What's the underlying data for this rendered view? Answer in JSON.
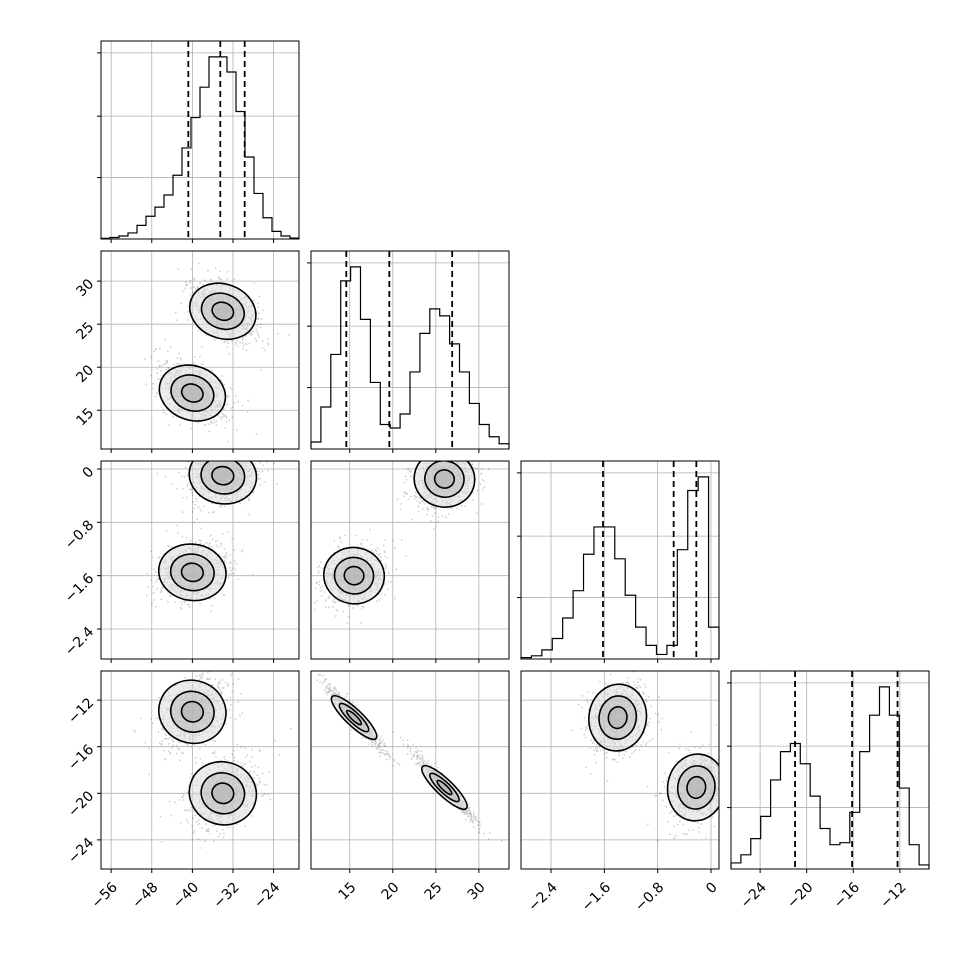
{
  "chart_data": {
    "type": "corner",
    "parameters": 4,
    "grid": true,
    "axes": [
      {
        "xticks": [
          -56,
          -48,
          -40,
          -32,
          -24
        ],
        "range": [
          -58,
          -19
        ],
        "hist": [
          0.2,
          0.5,
          1,
          2,
          4.5,
          7.5,
          10.5,
          14.5,
          21,
          30,
          40,
          50,
          60,
          60,
          55,
          42,
          27,
          15,
          7,
          2.5,
          1,
          0.3
        ],
        "quantiles": [
          -40.8,
          -34.5,
          -29.7
        ]
      },
      {
        "xticks": [
          15,
          20,
          25,
          30
        ],
        "yticks": [
          15,
          20,
          25,
          30
        ],
        "range": [
          10.5,
          33.5
        ],
        "hist": [
          2,
          12,
          27,
          48,
          52,
          37,
          19,
          7,
          6,
          10,
          22,
          33,
          40,
          38,
          30,
          22,
          13,
          7,
          3.5,
          1.5
        ],
        "quantiles": [
          14.6,
          19.6,
          26.9
        ]
      },
      {
        "xticks": [
          -2.4,
          -1.6,
          -0.8,
          0.0
        ],
        "yticks": [
          0.0,
          -0.8,
          -1.6,
          -2.4
        ],
        "range": [
          -2.85,
          0.12
        ],
        "hist": [
          0.3,
          0.7,
          2,
          4.5,
          9,
          15,
          23,
          29,
          29,
          22,
          14,
          7,
          3,
          1,
          3,
          24,
          37,
          40,
          7
        ],
        "quantiles": [
          -1.62,
          -0.56,
          -0.22
        ]
      },
      {
        "xticks": [
          -24,
          -20,
          -16,
          -12
        ],
        "yticks": [
          -12,
          -16,
          -20,
          -24
        ],
        "range": [
          -26.5,
          -9.5
        ],
        "hist": [
          1.5,
          3.5,
          7.5,
          13,
          22,
          29,
          31,
          26,
          18,
          10,
          6,
          6.5,
          14,
          29,
          38,
          45,
          38,
          20,
          6,
          1
        ],
        "quantiles": [
          -21,
          -16.1,
          -12.2
        ]
      }
    ],
    "modes": {
      "x0": [
        [
          -34,
          26.5,
          -0.1,
          -20
        ],
        [
          -40,
          17,
          -1.55,
          -13
        ]
      ],
      "x1": [
        [
          26,
          -0.15,
          -19.5
        ],
        [
          15.5,
          -1.6,
          -13.5
        ]
      ],
      "x2": [
        [
          -0.22,
          -19.5
        ],
        [
          -1.4,
          -13.5
        ]
      ]
    }
  }
}
